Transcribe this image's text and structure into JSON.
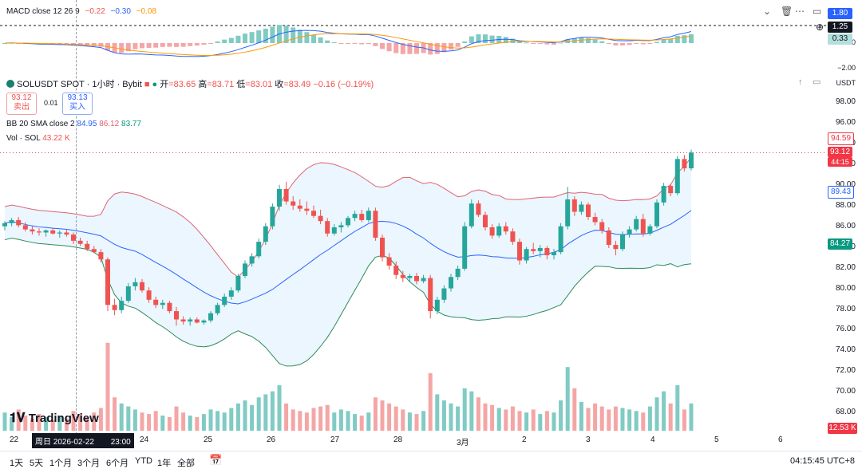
{
  "macd": {
    "name": "MACD close 12 26 9",
    "macd_value": "−0.22",
    "signal_value": "−0.30",
    "hist_value": "−0.08",
    "axis_badges": [
      "1.80",
      "1.25",
      "0.33"
    ],
    "axis_ticks": [
      "0.00",
      "−2.00"
    ]
  },
  "symbol": {
    "name": "SOLUSDT SPOT · 1小时 · Bybit",
    "open_label": "开",
    "open": "=83.65",
    "high_label": "高",
    "high": "=83.71",
    "low_label": "低",
    "low": "=83.01",
    "close_label": "收",
    "close": "=83.49",
    "change": "−0.16 (−0.19%)"
  },
  "trade": {
    "sell_price": "93.12",
    "sell_label": "卖出",
    "spread": "0.01",
    "buy_price": "93.13",
    "buy_label": "买入"
  },
  "bb": {
    "name": "BB 20 SMA close 2",
    "basis": "84.95",
    "upper": "86.12",
    "lower": "83.77"
  },
  "vol": {
    "name": "Vol · SOL",
    "value": "43.22 K"
  },
  "axis": {
    "currency": "USDT",
    "price_ticks": [
      "98.00",
      "96.00",
      "94.00",
      "92.00",
      "90.00",
      "88.00",
      "86.00",
      "84.00",
      "82.00",
      "80.00",
      "78.00",
      "76.00",
      "74.00",
      "72.00",
      "70.00",
      "68.00"
    ],
    "badges": {
      "upper_band": "94.59",
      "last_price": "93.12",
      "countdown": "44:15",
      "basis": "89.43",
      "lower_band": "84.27",
      "volume": "12.53 K"
    }
  },
  "time_axis": {
    "labels": [
      "22",
      "24",
      "25",
      "26",
      "27",
      "28",
      "3月",
      "2",
      "3",
      "4",
      "5",
      "6"
    ],
    "crosshair_date": "周日 2026-02-22",
    "crosshair_time": "23:00"
  },
  "bottom_bar": {
    "ranges": [
      "1天",
      "5天",
      "1个月",
      "3个月",
      "6个月",
      "YTD",
      "1年",
      "全部"
    ],
    "clock": "04:15:45 UTC+8"
  },
  "logo": "TradingView",
  "colors": {
    "up": "#26a69a",
    "down": "#ef5350",
    "bb_upper": "#e06370",
    "bb_basis": "#2962ff",
    "bb_lower": "#2e8b57",
    "macd_line": "#2962ff",
    "signal_line": "#ff9800",
    "last_price_badge": "#f23645",
    "basis_badge": "#2962ff",
    "lower_badge": "#089981"
  },
  "chart_data": {
    "type": "candlestick",
    "candles": [
      {
        "o": 86.0,
        "h": 86.5,
        "l": 85.6,
        "c": 86.3
      },
      {
        "o": 86.3,
        "h": 86.8,
        "l": 86.0,
        "c": 86.6
      },
      {
        "o": 86.6,
        "h": 86.9,
        "l": 85.9,
        "c": 86.1
      },
      {
        "o": 86.1,
        "h": 86.4,
        "l": 85.5,
        "c": 85.7
      },
      {
        "o": 85.7,
        "h": 86.0,
        "l": 85.2,
        "c": 85.5
      },
      {
        "o": 85.5,
        "h": 85.8,
        "l": 85.1,
        "c": 85.4
      },
      {
        "o": 85.4,
        "h": 85.7,
        "l": 85.0,
        "c": 85.6
      },
      {
        "o": 85.6,
        "h": 85.8,
        "l": 85.2,
        "c": 85.3
      },
      {
        "o": 85.3,
        "h": 85.6,
        "l": 84.9,
        "c": 85.4
      },
      {
        "o": 85.4,
        "h": 85.7,
        "l": 85.0,
        "c": 85.2
      },
      {
        "o": 85.2,
        "h": 85.4,
        "l": 84.3,
        "c": 84.6
      },
      {
        "o": 84.6,
        "h": 84.9,
        "l": 84.1,
        "c": 84.3
      },
      {
        "o": 84.3,
        "h": 84.6,
        "l": 83.6,
        "c": 83.8
      },
      {
        "o": 83.8,
        "h": 84.1,
        "l": 83.4,
        "c": 83.5
      },
      {
        "o": 83.5,
        "h": 83.8,
        "l": 82.5,
        "c": 82.8
      },
      {
        "o": 82.8,
        "h": 83.0,
        "l": 77.8,
        "c": 78.4
      },
      {
        "o": 78.4,
        "h": 79.0,
        "l": 77.4,
        "c": 77.9
      },
      {
        "o": 77.9,
        "h": 79.2,
        "l": 77.6,
        "c": 78.8
      },
      {
        "o": 78.8,
        "h": 80.5,
        "l": 78.6,
        "c": 80.2
      },
      {
        "o": 80.2,
        "h": 81.0,
        "l": 79.8,
        "c": 80.6
      },
      {
        "o": 80.6,
        "h": 80.9,
        "l": 79.6,
        "c": 79.8
      },
      {
        "o": 79.8,
        "h": 80.1,
        "l": 78.6,
        "c": 78.9
      },
      {
        "o": 78.9,
        "h": 79.2,
        "l": 78.1,
        "c": 78.4
      },
      {
        "o": 78.4,
        "h": 78.9,
        "l": 78.0,
        "c": 78.6
      },
      {
        "o": 78.6,
        "h": 78.8,
        "l": 77.6,
        "c": 77.8
      },
      {
        "o": 77.8,
        "h": 78.2,
        "l": 76.4,
        "c": 77.0
      },
      {
        "o": 77.0,
        "h": 77.3,
        "l": 76.5,
        "c": 76.8
      },
      {
        "o": 76.8,
        "h": 77.2,
        "l": 76.4,
        "c": 77.0
      },
      {
        "o": 77.0,
        "h": 77.2,
        "l": 76.6,
        "c": 76.7
      },
      {
        "o": 76.7,
        "h": 77.0,
        "l": 76.5,
        "c": 76.9
      },
      {
        "o": 76.9,
        "h": 77.8,
        "l": 76.7,
        "c": 77.6
      },
      {
        "o": 77.6,
        "h": 78.6,
        "l": 77.4,
        "c": 78.4
      },
      {
        "o": 78.4,
        "h": 79.5,
        "l": 78.2,
        "c": 79.2
      },
      {
        "o": 79.2,
        "h": 80.1,
        "l": 78.9,
        "c": 79.8
      },
      {
        "o": 79.8,
        "h": 81.4,
        "l": 79.6,
        "c": 81.2
      },
      {
        "o": 81.2,
        "h": 82.7,
        "l": 81.0,
        "c": 82.4
      },
      {
        "o": 82.4,
        "h": 83.4,
        "l": 82.1,
        "c": 83.1
      },
      {
        "o": 83.1,
        "h": 84.8,
        "l": 82.9,
        "c": 84.5
      },
      {
        "o": 84.5,
        "h": 86.3,
        "l": 84.2,
        "c": 86.0
      },
      {
        "o": 86.0,
        "h": 88.2,
        "l": 85.7,
        "c": 87.9
      },
      {
        "o": 87.9,
        "h": 90.0,
        "l": 87.5,
        "c": 89.6
      },
      {
        "o": 89.6,
        "h": 90.3,
        "l": 88.1,
        "c": 88.4
      },
      {
        "o": 88.4,
        "h": 88.9,
        "l": 87.6,
        "c": 88.0
      },
      {
        "o": 88.0,
        "h": 88.6,
        "l": 87.4,
        "c": 87.7
      },
      {
        "o": 87.7,
        "h": 88.4,
        "l": 87.1,
        "c": 87.5
      },
      {
        "o": 87.5,
        "h": 88.0,
        "l": 86.8,
        "c": 87.0
      },
      {
        "o": 87.0,
        "h": 87.6,
        "l": 86.2,
        "c": 86.5
      },
      {
        "o": 86.5,
        "h": 86.8,
        "l": 85.0,
        "c": 85.3
      },
      {
        "o": 85.3,
        "h": 86.2,
        "l": 85.1,
        "c": 85.9
      },
      {
        "o": 85.9,
        "h": 86.4,
        "l": 85.4,
        "c": 86.1
      },
      {
        "o": 86.1,
        "h": 87.0,
        "l": 85.9,
        "c": 86.8
      },
      {
        "o": 86.8,
        "h": 87.5,
        "l": 86.5,
        "c": 87.2
      },
      {
        "o": 87.2,
        "h": 87.6,
        "l": 86.4,
        "c": 86.6
      },
      {
        "o": 86.6,
        "h": 87.8,
        "l": 86.4,
        "c": 87.5
      },
      {
        "o": 87.5,
        "h": 87.8,
        "l": 84.6,
        "c": 84.9
      },
      {
        "o": 84.9,
        "h": 85.2,
        "l": 82.6,
        "c": 83.0
      },
      {
        "o": 83.0,
        "h": 83.4,
        "l": 81.8,
        "c": 82.2
      },
      {
        "o": 82.2,
        "h": 82.6,
        "l": 80.9,
        "c": 81.3
      },
      {
        "o": 81.3,
        "h": 81.7,
        "l": 80.6,
        "c": 81.0
      },
      {
        "o": 81.0,
        "h": 81.4,
        "l": 80.6,
        "c": 81.2
      },
      {
        "o": 81.2,
        "h": 81.5,
        "l": 80.4,
        "c": 80.7
      },
      {
        "o": 80.7,
        "h": 81.3,
        "l": 80.5,
        "c": 81.0
      },
      {
        "o": 81.0,
        "h": 81.3,
        "l": 77.1,
        "c": 77.8
      },
      {
        "o": 77.8,
        "h": 79.2,
        "l": 77.5,
        "c": 78.9
      },
      {
        "o": 78.9,
        "h": 80.3,
        "l": 78.6,
        "c": 80.0
      },
      {
        "o": 80.0,
        "h": 81.4,
        "l": 79.7,
        "c": 81.1
      },
      {
        "o": 81.1,
        "h": 82.2,
        "l": 80.8,
        "c": 81.9
      },
      {
        "o": 81.9,
        "h": 86.4,
        "l": 81.7,
        "c": 86.0
      },
      {
        "o": 86.0,
        "h": 88.6,
        "l": 85.8,
        "c": 88.2
      },
      {
        "o": 88.2,
        "h": 88.5,
        "l": 86.9,
        "c": 87.1
      },
      {
        "o": 87.1,
        "h": 87.4,
        "l": 85.6,
        "c": 85.9
      },
      {
        "o": 85.9,
        "h": 86.2,
        "l": 84.8,
        "c": 85.1
      },
      {
        "o": 85.1,
        "h": 86.3,
        "l": 84.9,
        "c": 86.0
      },
      {
        "o": 86.0,
        "h": 86.4,
        "l": 85.2,
        "c": 85.5
      },
      {
        "o": 85.5,
        "h": 85.8,
        "l": 84.2,
        "c": 84.5
      },
      {
        "o": 84.5,
        "h": 84.8,
        "l": 82.3,
        "c": 82.7
      },
      {
        "o": 82.7,
        "h": 84.0,
        "l": 82.4,
        "c": 83.8
      },
      {
        "o": 83.8,
        "h": 84.4,
        "l": 83.3,
        "c": 83.6
      },
      {
        "o": 83.6,
        "h": 84.2,
        "l": 83.0,
        "c": 83.9
      },
      {
        "o": 83.9,
        "h": 84.1,
        "l": 82.8,
        "c": 83.2
      },
      {
        "o": 83.2,
        "h": 83.8,
        "l": 82.8,
        "c": 83.5
      },
      {
        "o": 83.5,
        "h": 86.3,
        "l": 83.3,
        "c": 86.0
      },
      {
        "o": 86.0,
        "h": 89.8,
        "l": 85.7,
        "c": 88.6
      },
      {
        "o": 88.6,
        "h": 88.9,
        "l": 87.0,
        "c": 87.4
      },
      {
        "o": 87.4,
        "h": 88.4,
        "l": 87.1,
        "c": 88.1
      },
      {
        "o": 88.1,
        "h": 88.3,
        "l": 86.6,
        "c": 86.9
      },
      {
        "o": 86.9,
        "h": 87.3,
        "l": 86.1,
        "c": 86.4
      },
      {
        "o": 86.4,
        "h": 86.7,
        "l": 85.3,
        "c": 85.6
      },
      {
        "o": 85.6,
        "h": 85.9,
        "l": 83.9,
        "c": 84.2
      },
      {
        "o": 84.2,
        "h": 84.6,
        "l": 83.2,
        "c": 83.8
      },
      {
        "o": 83.8,
        "h": 85.5,
        "l": 83.6,
        "c": 85.2
      },
      {
        "o": 85.2,
        "h": 86.0,
        "l": 84.9,
        "c": 85.7
      },
      {
        "o": 85.7,
        "h": 87.0,
        "l": 85.5,
        "c": 86.7
      },
      {
        "o": 86.7,
        "h": 87.2,
        "l": 85.0,
        "c": 85.3
      },
      {
        "o": 85.3,
        "h": 86.2,
        "l": 85.1,
        "c": 86.0
      },
      {
        "o": 86.0,
        "h": 88.6,
        "l": 85.8,
        "c": 88.3
      },
      {
        "o": 88.3,
        "h": 90.2,
        "l": 88.0,
        "c": 89.9
      },
      {
        "o": 89.9,
        "h": 90.1,
        "l": 88.9,
        "c": 89.2
      },
      {
        "o": 89.2,
        "h": 92.8,
        "l": 89.0,
        "c": 92.5
      },
      {
        "o": 92.5,
        "h": 92.9,
        "l": 91.3,
        "c": 91.6
      },
      {
        "o": 91.6,
        "h": 93.4,
        "l": 91.4,
        "c": 93.12
      }
    ],
    "volumes": [
      12,
      9,
      14,
      10,
      8,
      11,
      9,
      7,
      10,
      8,
      13,
      11,
      9,
      12,
      15,
      58,
      22,
      18,
      16,
      14,
      12,
      11,
      13,
      10,
      9,
      16,
      12,
      10,
      9,
      11,
      14,
      13,
      12,
      15,
      18,
      20,
      17,
      22,
      24,
      26,
      30,
      18,
      14,
      13,
      12,
      15,
      16,
      17,
      12,
      14,
      13,
      11,
      10,
      12,
      22,
      20,
      18,
      16,
      14,
      12,
      11,
      13,
      38,
      24,
      20,
      18,
      16,
      28,
      26,
      22,
      18,
      17,
      15,
      14,
      16,
      13,
      12,
      14,
      11,
      13,
      12,
      20,
      42,
      28,
      19,
      15,
      18,
      16,
      14,
      16,
      15,
      14,
      13,
      12,
      16,
      22,
      26,
      18,
      30,
      14,
      18
    ],
    "volume_colors_up": [],
    "macd_hist_note": "histogram reconstructed from price"
  }
}
